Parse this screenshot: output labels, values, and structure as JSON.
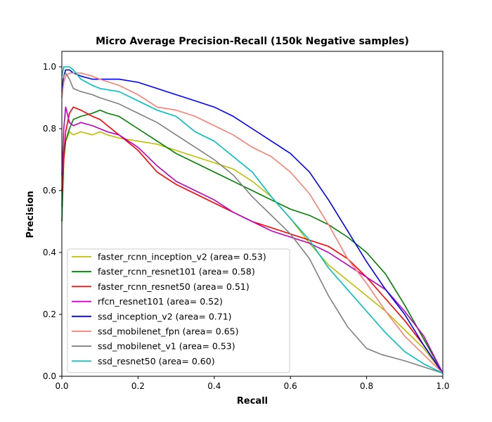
{
  "chart_data": {
    "type": "line",
    "title": "Micro Average Precision-Recall (150k Negative samples)",
    "xlabel": "Recall",
    "ylabel": "Precision",
    "xlim": [
      0,
      1
    ],
    "ylim": [
      0,
      1.05
    ],
    "xticks": [
      "0.0",
      "0.2",
      "0.4",
      "0.6",
      "0.8",
      "1.0"
    ],
    "yticks": [
      "0.0",
      "0.2",
      "0.4",
      "0.6",
      "0.8",
      "1.0"
    ],
    "grid": false,
    "legend_position": "lower-left",
    "series": [
      {
        "name": "faster_rcnn_inception_v2 (area= 0.53)",
        "color": "#bfbf00",
        "points": [
          [
            0.0,
            0.55
          ],
          [
            0.005,
            0.7
          ],
          [
            0.01,
            0.76
          ],
          [
            0.02,
            0.79
          ],
          [
            0.03,
            0.78
          ],
          [
            0.05,
            0.79
          ],
          [
            0.08,
            0.78
          ],
          [
            0.1,
            0.79
          ],
          [
            0.12,
            0.78
          ],
          [
            0.15,
            0.77
          ],
          [
            0.2,
            0.76
          ],
          [
            0.25,
            0.75
          ],
          [
            0.3,
            0.73
          ],
          [
            0.35,
            0.71
          ],
          [
            0.4,
            0.69
          ],
          [
            0.45,
            0.67
          ],
          [
            0.5,
            0.63
          ],
          [
            0.55,
            0.58
          ],
          [
            0.6,
            0.51
          ],
          [
            0.65,
            0.43
          ],
          [
            0.7,
            0.36
          ],
          [
            0.75,
            0.31
          ],
          [
            0.8,
            0.26
          ],
          [
            0.85,
            0.21
          ],
          [
            0.9,
            0.15
          ],
          [
            0.95,
            0.09
          ],
          [
            1.0,
            0.01
          ]
        ]
      },
      {
        "name": "faster_rcnn_resnet101 (area= 0.58)",
        "color": "#008000",
        "points": [
          [
            0.0,
            0.5
          ],
          [
            0.005,
            0.7
          ],
          [
            0.01,
            0.76
          ],
          [
            0.02,
            0.8
          ],
          [
            0.03,
            0.83
          ],
          [
            0.05,
            0.84
          ],
          [
            0.08,
            0.85
          ],
          [
            0.1,
            0.86
          ],
          [
            0.12,
            0.85
          ],
          [
            0.15,
            0.84
          ],
          [
            0.2,
            0.8
          ],
          [
            0.25,
            0.76
          ],
          [
            0.3,
            0.72
          ],
          [
            0.35,
            0.69
          ],
          [
            0.4,
            0.66
          ],
          [
            0.45,
            0.63
          ],
          [
            0.5,
            0.6
          ],
          [
            0.55,
            0.57
          ],
          [
            0.6,
            0.54
          ],
          [
            0.65,
            0.52
          ],
          [
            0.7,
            0.49
          ],
          [
            0.75,
            0.45
          ],
          [
            0.8,
            0.4
          ],
          [
            0.85,
            0.33
          ],
          [
            0.9,
            0.23
          ],
          [
            0.95,
            0.12
          ],
          [
            1.0,
            0.01
          ]
        ]
      },
      {
        "name": "faster_rcnn_resnet50 (area= 0.51)",
        "color": "#ff0000",
        "points": [
          [
            0.0,
            0.6
          ],
          [
            0.005,
            0.72
          ],
          [
            0.01,
            0.79
          ],
          [
            0.02,
            0.85
          ],
          [
            0.03,
            0.87
          ],
          [
            0.05,
            0.86
          ],
          [
            0.08,
            0.84
          ],
          [
            0.1,
            0.83
          ],
          [
            0.12,
            0.81
          ],
          [
            0.15,
            0.78
          ],
          [
            0.2,
            0.73
          ],
          [
            0.25,
            0.66
          ],
          [
            0.3,
            0.62
          ],
          [
            0.35,
            0.59
          ],
          [
            0.4,
            0.56
          ],
          [
            0.45,
            0.53
          ],
          [
            0.5,
            0.5
          ],
          [
            0.55,
            0.48
          ],
          [
            0.6,
            0.46
          ],
          [
            0.65,
            0.44
          ],
          [
            0.7,
            0.42
          ],
          [
            0.75,
            0.38
          ],
          [
            0.8,
            0.32
          ],
          [
            0.85,
            0.25
          ],
          [
            0.9,
            0.18
          ],
          [
            0.95,
            0.1
          ],
          [
            1.0,
            0.01
          ]
        ]
      },
      {
        "name": "rfcn_resnet101 (area= 0.52)",
        "color": "#bf00bf",
        "points": [
          [
            0.0,
            0.65
          ],
          [
            0.005,
            0.8
          ],
          [
            0.01,
            0.87
          ],
          [
            0.02,
            0.82
          ],
          [
            0.03,
            0.81
          ],
          [
            0.05,
            0.82
          ],
          [
            0.08,
            0.81
          ],
          [
            0.1,
            0.8
          ],
          [
            0.12,
            0.79
          ],
          [
            0.15,
            0.78
          ],
          [
            0.2,
            0.74
          ],
          [
            0.25,
            0.68
          ],
          [
            0.3,
            0.63
          ],
          [
            0.35,
            0.6
          ],
          [
            0.4,
            0.57
          ],
          [
            0.45,
            0.53
          ],
          [
            0.5,
            0.5
          ],
          [
            0.55,
            0.47
          ],
          [
            0.6,
            0.45
          ],
          [
            0.65,
            0.43
          ],
          [
            0.7,
            0.4
          ],
          [
            0.75,
            0.36
          ],
          [
            0.8,
            0.32
          ],
          [
            0.85,
            0.28
          ],
          [
            0.9,
            0.21
          ],
          [
            0.95,
            0.13
          ],
          [
            1.0,
            0.01
          ]
        ]
      },
      {
        "name": "ssd_inception_v2 (area= 0.71)",
        "color": "#0000ff",
        "points": [
          [
            0.0,
            0.92
          ],
          [
            0.005,
            0.97
          ],
          [
            0.01,
            0.99
          ],
          [
            0.02,
            0.99
          ],
          [
            0.03,
            0.98
          ],
          [
            0.05,
            0.97
          ],
          [
            0.08,
            0.96
          ],
          [
            0.1,
            0.96
          ],
          [
            0.15,
            0.96
          ],
          [
            0.2,
            0.95
          ],
          [
            0.25,
            0.93
          ],
          [
            0.3,
            0.91
          ],
          [
            0.35,
            0.89
          ],
          [
            0.4,
            0.87
          ],
          [
            0.45,
            0.84
          ],
          [
            0.5,
            0.8
          ],
          [
            0.55,
            0.76
          ],
          [
            0.6,
            0.72
          ],
          [
            0.65,
            0.66
          ],
          [
            0.7,
            0.57
          ],
          [
            0.75,
            0.47
          ],
          [
            0.8,
            0.37
          ],
          [
            0.85,
            0.28
          ],
          [
            0.9,
            0.2
          ],
          [
            0.95,
            0.1
          ],
          [
            1.0,
            0.01
          ]
        ]
      },
      {
        "name": "ssd_mobilenet_fpn (area= 0.65)",
        "color": "#fa8072",
        "points": [
          [
            0.0,
            0.9
          ],
          [
            0.005,
            0.95
          ],
          [
            0.01,
            0.97
          ],
          [
            0.02,
            0.98
          ],
          [
            0.03,
            0.98
          ],
          [
            0.05,
            0.98
          ],
          [
            0.08,
            0.97
          ],
          [
            0.1,
            0.96
          ],
          [
            0.15,
            0.94
          ],
          [
            0.2,
            0.91
          ],
          [
            0.25,
            0.87
          ],
          [
            0.3,
            0.86
          ],
          [
            0.35,
            0.84
          ],
          [
            0.4,
            0.81
          ],
          [
            0.45,
            0.78
          ],
          [
            0.5,
            0.74
          ],
          [
            0.55,
            0.71
          ],
          [
            0.6,
            0.66
          ],
          [
            0.65,
            0.59
          ],
          [
            0.7,
            0.49
          ],
          [
            0.75,
            0.38
          ],
          [
            0.8,
            0.3
          ],
          [
            0.85,
            0.21
          ],
          [
            0.9,
            0.13
          ],
          [
            0.95,
            0.07
          ],
          [
            1.0,
            0.01
          ]
        ]
      },
      {
        "name": "ssd_mobilenet_v1 (area= 0.53)",
        "color": "#808080",
        "points": [
          [
            0.0,
            0.95
          ],
          [
            0.005,
            0.97
          ],
          [
            0.01,
            0.98
          ],
          [
            0.02,
            0.96
          ],
          [
            0.03,
            0.93
          ],
          [
            0.05,
            0.92
          ],
          [
            0.08,
            0.91
          ],
          [
            0.1,
            0.9
          ],
          [
            0.15,
            0.88
          ],
          [
            0.2,
            0.85
          ],
          [
            0.25,
            0.82
          ],
          [
            0.3,
            0.78
          ],
          [
            0.35,
            0.74
          ],
          [
            0.4,
            0.7
          ],
          [
            0.45,
            0.65
          ],
          [
            0.5,
            0.58
          ],
          [
            0.55,
            0.52
          ],
          [
            0.6,
            0.46
          ],
          [
            0.65,
            0.38
          ],
          [
            0.7,
            0.26
          ],
          [
            0.75,
            0.16
          ],
          [
            0.8,
            0.09
          ],
          [
            0.84,
            0.07
          ],
          [
            0.9,
            0.05
          ],
          [
            0.95,
            0.03
          ],
          [
            1.0,
            0.01
          ]
        ]
      },
      {
        "name": "ssd_resnet50 (area= 0.60)",
        "color": "#00bfbf",
        "points": [
          [
            0.0,
            0.97
          ],
          [
            0.005,
            1.0
          ],
          [
            0.01,
            1.0
          ],
          [
            0.02,
            1.0
          ],
          [
            0.03,
            0.99
          ],
          [
            0.05,
            0.96
          ],
          [
            0.08,
            0.94
          ],
          [
            0.1,
            0.93
          ],
          [
            0.15,
            0.92
          ],
          [
            0.2,
            0.89
          ],
          [
            0.25,
            0.86
          ],
          [
            0.3,
            0.84
          ],
          [
            0.35,
            0.79
          ],
          [
            0.4,
            0.76
          ],
          [
            0.45,
            0.71
          ],
          [
            0.5,
            0.66
          ],
          [
            0.55,
            0.58
          ],
          [
            0.6,
            0.51
          ],
          [
            0.65,
            0.44
          ],
          [
            0.7,
            0.35
          ],
          [
            0.75,
            0.28
          ],
          [
            0.8,
            0.21
          ],
          [
            0.85,
            0.14
          ],
          [
            0.9,
            0.08
          ],
          [
            0.95,
            0.04
          ],
          [
            1.0,
            0.01
          ]
        ]
      }
    ]
  }
}
